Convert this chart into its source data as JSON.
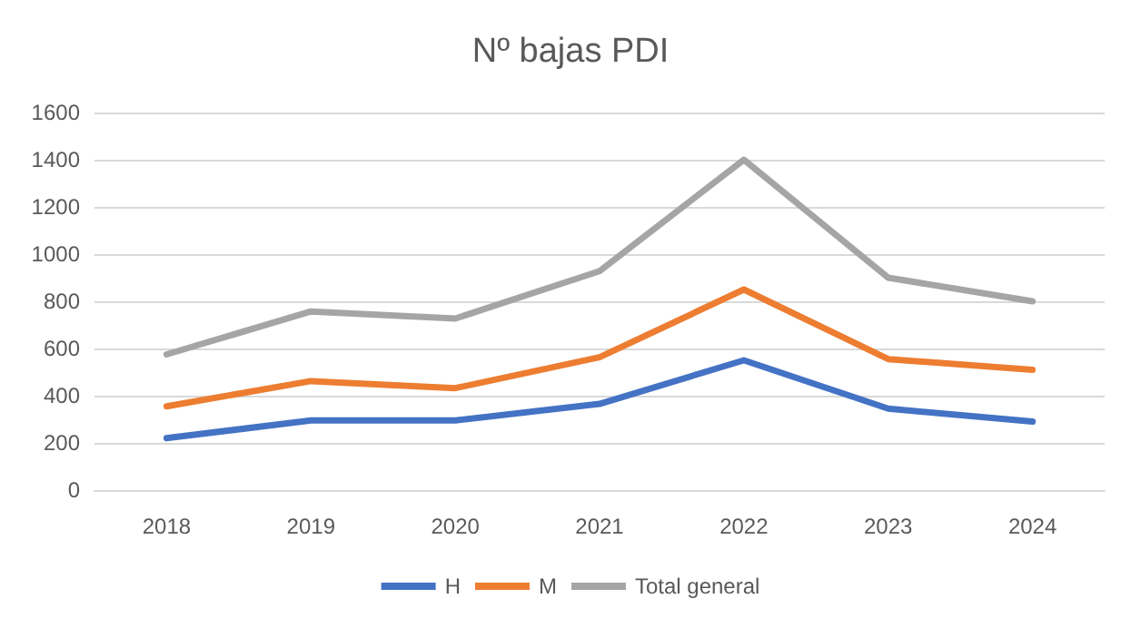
{
  "chart_data": {
    "type": "line",
    "title": "Nº bajas PDI",
    "categories": [
      "2018",
      "2019",
      "2020",
      "2021",
      "2022",
      "2023",
      "2024"
    ],
    "series": [
      {
        "name": "H",
        "color": "#4472c4",
        "values": [
          220,
          295,
          295,
          365,
          550,
          345,
          290
        ]
      },
      {
        "name": "M",
        "color": "#ed7d31",
        "values": [
          355,
          462,
          432,
          563,
          850,
          555,
          510
        ]
      },
      {
        "name": "Total general",
        "color": "#a5a5a5",
        "values": [
          575,
          757,
          727,
          928,
          1400,
          900,
          800
        ]
      }
    ],
    "ylim": [
      0,
      1600
    ],
    "yticks": [
      0,
      200,
      400,
      600,
      800,
      1000,
      1200,
      1400,
      1600
    ],
    "grid": "y",
    "legend": "bottom",
    "marker": "none",
    "line_style": "solid"
  }
}
